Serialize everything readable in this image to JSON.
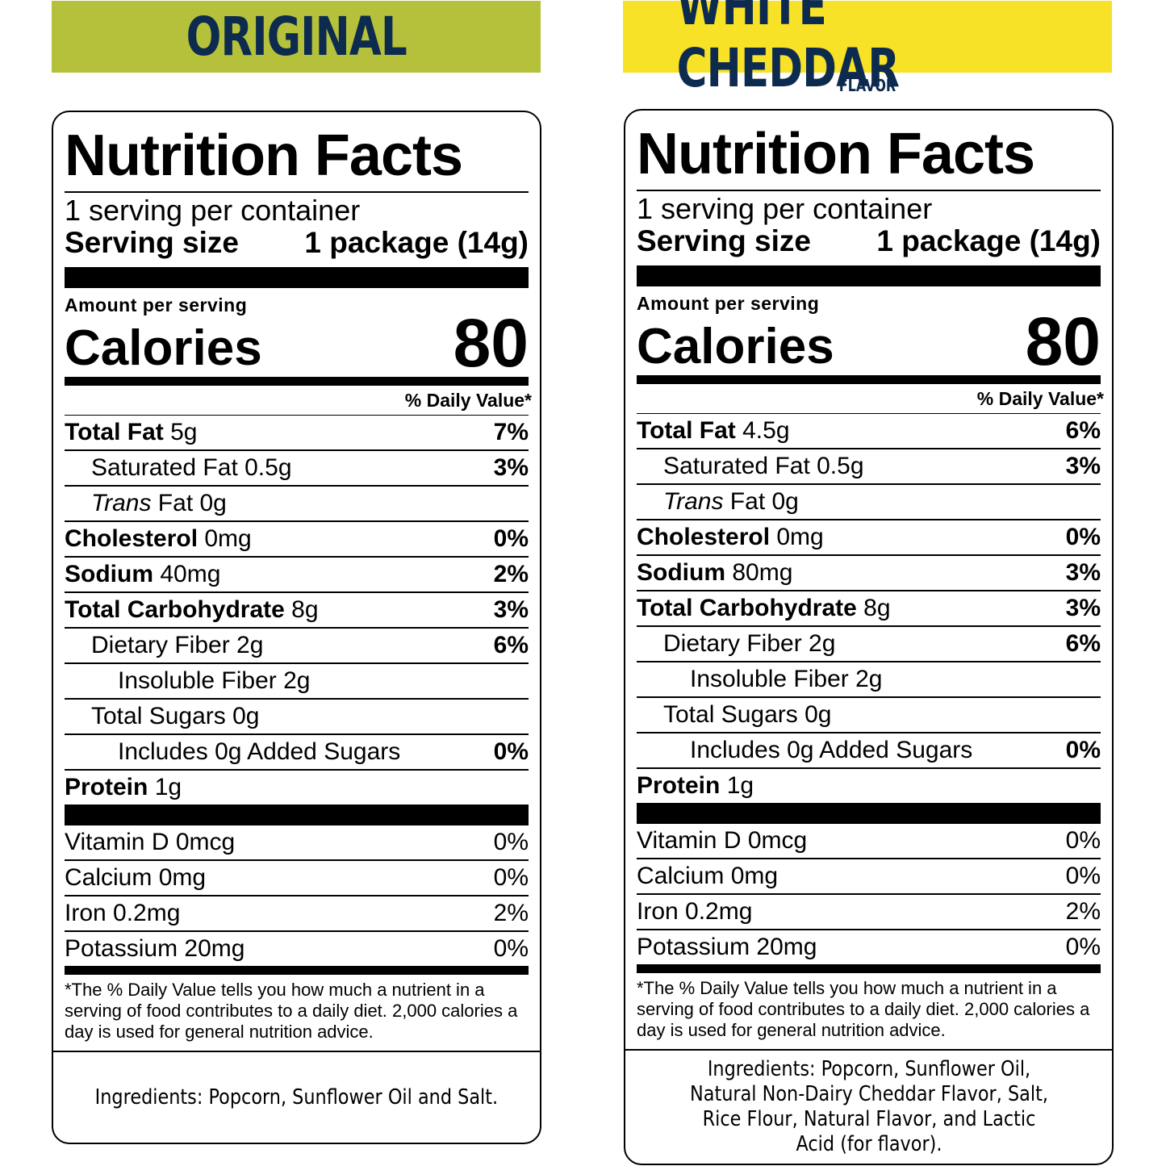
{
  "products": [
    {
      "flavor_name": "ORIGINAL",
      "flavor_sub": "",
      "banner_color": "#b5c13a",
      "title": "Nutrition Facts",
      "servings": "1 serving per container",
      "serving_size_label": "Serving size",
      "serving_size_value": "1 package (14g)",
      "amount_per_serving": "Amount per serving",
      "calories_label": "Calories",
      "calories_value": "80",
      "dv_header": "% Daily Value*",
      "nutrients": [
        {
          "bold": "Total Fat",
          "name": "",
          "amount": " 5g",
          "dv": "7%"
        },
        {
          "bold": "",
          "name": "Saturated Fat",
          "amount": " 0.5g",
          "dv": "3%"
        },
        {
          "bold": "",
          "italic": "Trans",
          "name": " Fat",
          "amount": " 0g",
          "dv": ""
        },
        {
          "bold": "Cholesterol",
          "name": "",
          "amount": " 0mg",
          "dv": "0%"
        },
        {
          "bold": "Sodium",
          "name": "",
          "amount": " 40mg",
          "dv": "2%"
        },
        {
          "bold": "Total Carbohydrate",
          "name": "",
          "amount": " 8g",
          "dv": "3%"
        },
        {
          "bold": "",
          "name": "Dietary Fiber",
          "amount": " 2g",
          "dv": "6%"
        },
        {
          "bold": "",
          "name": "Insoluble Fiber",
          "amount": " 2g",
          "dv": ""
        },
        {
          "bold": "",
          "name": "Total Sugars",
          "amount": " 0g",
          "dv": ""
        },
        {
          "bold": "",
          "name": "Includes 0g Added Sugars",
          "amount": "",
          "dv": "0%"
        },
        {
          "bold": "Protein",
          "name": "",
          "amount": " 1g",
          "dv": ""
        }
      ],
      "vitamins": [
        {
          "name": "Vitamin D 0mcg",
          "dv": "0%"
        },
        {
          "name": "Calcium 0mg",
          "dv": "0%"
        },
        {
          "name": "Iron 0.2mg",
          "dv": "2%"
        },
        {
          "name": "Potassium 20mg",
          "dv": "0%"
        }
      ],
      "footnote": "*The % Daily Value tells you how much a nutrient in a serving of food contributes to a daily diet. 2,000 calories a day is used for general nutrition advice.",
      "ingredients": "Ingredients: Popcorn, Sunflower Oil and Salt."
    },
    {
      "flavor_name": "WHITE CHEDDAR",
      "flavor_sub": "FLAVOR",
      "banner_color": "#f7e227",
      "title": "Nutrition Facts",
      "servings": "1 serving per container",
      "serving_size_label": "Serving size",
      "serving_size_value": "1 package (14g)",
      "amount_per_serving": "Amount per serving",
      "calories_label": "Calories",
      "calories_value": "80",
      "dv_header": "% Daily Value*",
      "nutrients": [
        {
          "bold": "Total Fat",
          "name": "",
          "amount": " 4.5g",
          "dv": "6%"
        },
        {
          "bold": "",
          "name": "Saturated Fat",
          "amount": " 0.5g",
          "dv": "3%"
        },
        {
          "bold": "",
          "italic": "Trans",
          "name": " Fat",
          "amount": " 0g",
          "dv": ""
        },
        {
          "bold": "Cholesterol",
          "name": "",
          "amount": " 0mg",
          "dv": "0%"
        },
        {
          "bold": "Sodium",
          "name": "",
          "amount": " 80mg",
          "dv": "3%"
        },
        {
          "bold": "Total Carbohydrate",
          "name": "",
          "amount": " 8g",
          "dv": "3%"
        },
        {
          "bold": "",
          "name": "Dietary Fiber",
          "amount": " 2g",
          "dv": "6%"
        },
        {
          "bold": "",
          "name": "Insoluble Fiber",
          "amount": " 2g",
          "dv": ""
        },
        {
          "bold": "",
          "name": "Total Sugars",
          "amount": " 0g",
          "dv": ""
        },
        {
          "bold": "",
          "name": "Includes 0g Added Sugars",
          "amount": "",
          "dv": "0%"
        },
        {
          "bold": "Protein",
          "name": "",
          "amount": " 1g",
          "dv": ""
        }
      ],
      "vitamins": [
        {
          "name": "Vitamin D 0mcg",
          "dv": "0%"
        },
        {
          "name": "Calcium 0mg",
          "dv": "0%"
        },
        {
          "name": "Iron 0.2mg",
          "dv": "2%"
        },
        {
          "name": "Potassium 20mg",
          "dv": "0%"
        }
      ],
      "footnote": "*The % Daily Value tells you how much a nutrient in a serving of food contributes to a daily diet. 2,000 calories a day is used for general nutrition advice.",
      "ingredients": "Ingredients: Popcorn, Sunflower Oil, Natural Non-Dairy Cheddar Flavor, Salt, Rice Flour, Natural Flavor, and Lactic Acid (for flavor)."
    }
  ]
}
